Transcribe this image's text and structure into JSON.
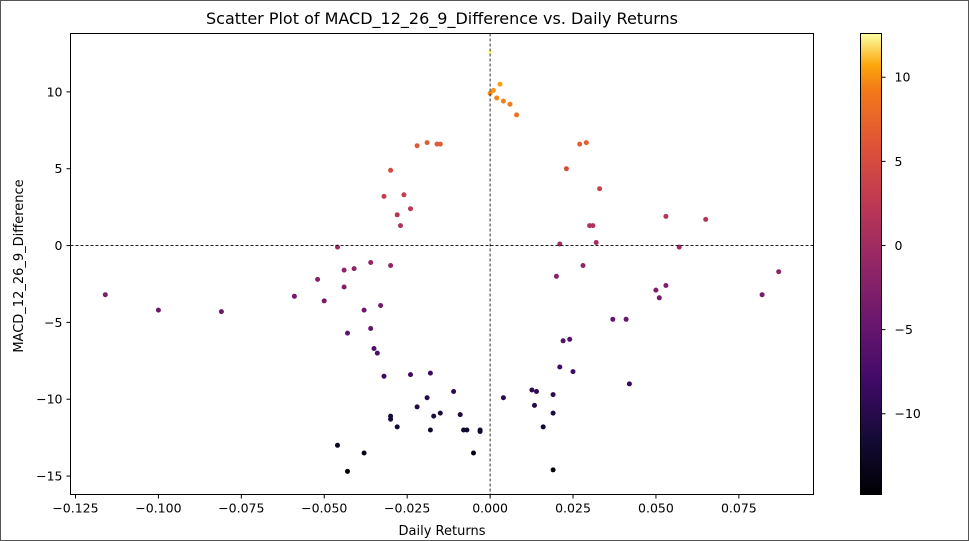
{
  "chart_data": {
    "type": "scatter",
    "title": "Scatter Plot of MACD_12_26_9_Difference vs. Daily Returns",
    "xlabel": "Daily Returns",
    "ylabel": "MACD_12_26_9_Difference",
    "xlim": [
      -0.1265,
      0.0975
    ],
    "ylim": [
      -16.2,
      13.8
    ],
    "xticks": [
      -0.125,
      -0.1,
      -0.075,
      -0.05,
      -0.025,
      0.0,
      0.025,
      0.05,
      0.075
    ],
    "xtick_labels": [
      "−0.125",
      "−0.100",
      "−0.075",
      "−0.050",
      "−0.025",
      "0.000",
      "0.025",
      "0.050",
      "0.075"
    ],
    "yticks": [
      -15,
      -10,
      -5,
      0,
      5,
      10
    ],
    "ytick_labels": [
      "−15",
      "−10",
      "−5",
      "0",
      "5",
      "10"
    ],
    "reference_lines": {
      "x": 0.0,
      "y": 0.0,
      "style": "dashed"
    },
    "colormap": "inferno",
    "color_value": "MACD_12_26_9_Difference",
    "colorbar": {
      "range": [
        -14.8,
        12.6
      ],
      "ticks": [
        -10,
        -5,
        0,
        5,
        10
      ],
      "tick_labels": [
        "−10",
        "−5",
        "0",
        "5",
        "10"
      ]
    },
    "grid": false,
    "points": [
      [
        -0.116,
        -3.2
      ],
      [
        -0.1,
        -4.2
      ],
      [
        -0.081,
        -4.3
      ],
      [
        -0.059,
        -3.3
      ],
      [
        -0.052,
        -2.2
      ],
      [
        -0.05,
        -3.6
      ],
      [
        -0.046,
        -0.1
      ],
      [
        -0.044,
        -1.6
      ],
      [
        -0.044,
        -2.7
      ],
      [
        -0.043,
        -5.7
      ],
      [
        -0.041,
        -1.5
      ],
      [
        -0.046,
        -13.0
      ],
      [
        -0.043,
        -14.7
      ],
      [
        -0.038,
        -13.5
      ],
      [
        -0.038,
        -4.2
      ],
      [
        -0.036,
        -1.1
      ],
      [
        -0.036,
        -5.4
      ],
      [
        -0.035,
        -6.7
      ],
      [
        -0.034,
        -7.0
      ],
      [
        -0.033,
        -3.9
      ],
      [
        -0.032,
        -8.5
      ],
      [
        -0.032,
        3.2
      ],
      [
        -0.03,
        4.9
      ],
      [
        -0.03,
        -1.3
      ],
      [
        -0.03,
        -11.1
      ],
      [
        -0.03,
        -11.3
      ],
      [
        -0.028,
        -11.8
      ],
      [
        -0.028,
        2.0
      ],
      [
        -0.027,
        1.3
      ],
      [
        -0.026,
        3.3
      ],
      [
        -0.024,
        2.4
      ],
      [
        -0.022,
        6.5
      ],
      [
        -0.019,
        6.7
      ],
      [
        -0.016,
        6.6
      ],
      [
        -0.015,
        6.6
      ],
      [
        -0.024,
        -8.4
      ],
      [
        -0.022,
        -10.5
      ],
      [
        -0.019,
        -9.9
      ],
      [
        -0.018,
        -8.3
      ],
      [
        -0.018,
        -12.0
      ],
      [
        -0.017,
        -11.1
      ],
      [
        -0.015,
        -10.9
      ],
      [
        -0.011,
        -9.5
      ],
      [
        -0.009,
        -11.0
      ],
      [
        -0.008,
        -12.0
      ],
      [
        -0.007,
        -12.0
      ],
      [
        -0.005,
        -13.5
      ],
      [
        -0.003,
        -12.0
      ],
      [
        -0.003,
        -12.1
      ],
      [
        0.004,
        -9.9
      ],
      [
        0.019,
        -14.6
      ],
      [
        0.016,
        -11.8
      ],
      [
        0.019,
        -9.7
      ],
      [
        0.019,
        -10.9
      ],
      [
        0.0126,
        -9.4
      ],
      [
        0.0134,
        -10.4
      ],
      [
        0.014,
        -9.5
      ],
      [
        0.042,
        -9.0
      ],
      [
        0.037,
        -4.8
      ],
      [
        0.041,
        -4.8
      ],
      [
        0.05,
        -2.9
      ],
      [
        0.051,
        -3.4
      ],
      [
        0.053,
        -2.6
      ],
      [
        0.053,
        1.9
      ],
      [
        0.057,
        -0.1
      ],
      [
        0.065,
        1.7
      ],
      [
        0.082,
        -3.2
      ],
      [
        0.087,
        -1.7
      ],
      [
        0.033,
        3.7
      ],
      [
        0.031,
        1.3
      ],
      [
        0.032,
        0.2
      ],
      [
        0.03,
        1.3
      ],
      [
        0.029,
        6.7
      ],
      [
        0.027,
        6.6
      ],
      [
        0.023,
        5.0
      ],
      [
        0.021,
        0.1
      ],
      [
        0.02,
        -2.0
      ],
      [
        0.021,
        -7.9
      ],
      [
        0.024,
        -6.1
      ],
      [
        0.025,
        -8.2
      ],
      [
        0.022,
        -6.2
      ],
      [
        0.028,
        -1.3
      ],
      [
        0.0,
        12.6
      ],
      [
        0.003,
        10.5
      ],
      [
        0.001,
        10.1
      ],
      [
        0.002,
        9.6
      ],
      [
        0.0,
        9.9
      ],
      [
        0.004,
        9.4
      ],
      [
        0.006,
        9.2
      ],
      [
        0.008,
        8.5
      ]
    ]
  }
}
